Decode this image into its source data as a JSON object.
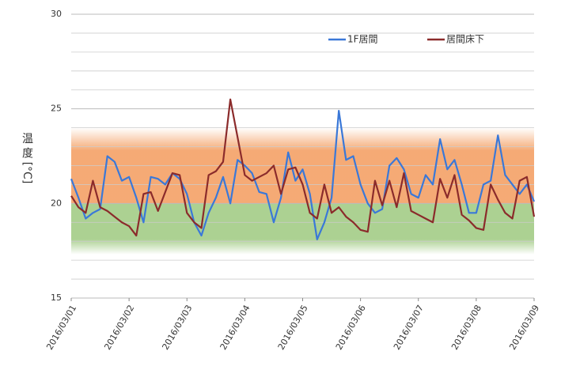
{
  "chart_data": {
    "type": "line",
    "ylabel": "温 度 [°C]",
    "x": [
      0,
      0.125,
      0.25,
      0.375,
      0.5,
      0.625,
      0.75,
      0.875,
      1,
      1.125,
      1.25,
      1.375,
      1.5,
      1.625,
      1.75,
      1.875,
      2,
      2.125,
      2.25,
      2.375,
      2.5,
      2.625,
      2.75,
      2.875,
      3,
      3.125,
      3.25,
      3.375,
      3.5,
      3.625,
      3.75,
      3.875,
      4,
      4.125,
      4.25,
      4.375,
      4.5,
      4.625,
      4.75,
      4.875,
      5,
      5.125,
      5.25,
      5.375,
      5.5,
      5.625,
      5.75,
      5.875,
      6,
      6.125,
      6.25,
      6.375,
      6.5,
      6.625,
      6.75,
      6.875,
      7,
      7.125,
      7.25,
      7.375,
      7.5,
      7.625,
      7.75,
      7.875,
      8
    ],
    "xlim": [
      0,
      8
    ],
    "xticks": [
      {
        "value": 0,
        "label": "2016/03/01"
      },
      {
        "value": 1,
        "label": "2016/03/02"
      },
      {
        "value": 2,
        "label": "2016/03/03"
      },
      {
        "value": 3,
        "label": "2016/03/04"
      },
      {
        "value": 4,
        "label": "2016/03/05"
      },
      {
        "value": 5,
        "label": "2016/03/06"
      },
      {
        "value": 6,
        "label": "2016/03/07"
      },
      {
        "value": 7,
        "label": "2016/03/08"
      },
      {
        "value": 8,
        "label": "2016/03/09"
      }
    ],
    "ylim": [
      15,
      30
    ],
    "yticks": [
      15,
      20,
      25,
      30
    ],
    "minor_yticks": [
      16,
      17,
      18,
      19,
      21,
      22,
      23,
      24,
      26,
      27,
      28,
      29
    ],
    "bands": [
      {
        "from": 20,
        "to": 24,
        "color": "#f4a166"
      },
      {
        "from": 17.3,
        "to": 20,
        "color": "#a3cc86"
      }
    ],
    "legend": "top-right",
    "series": [
      {
        "name": "1F居間",
        "color": "#3a78d8",
        "values": [
          21.3,
          20.3,
          19.2,
          19.5,
          19.7,
          22.5,
          22.2,
          21.2,
          21.4,
          20.3,
          19.0,
          21.4,
          21.3,
          21.0,
          21.6,
          21.3,
          20.5,
          19.0,
          18.3,
          19.5,
          20.3,
          21.4,
          20.0,
          22.3,
          22.0,
          21.6,
          20.6,
          20.5,
          19.0,
          20.3,
          22.7,
          21.2,
          21.8,
          20.5,
          18.1,
          19.0,
          20.3,
          24.9,
          22.3,
          22.5,
          21.0,
          20.0,
          19.5,
          19.7,
          22.0,
          22.4,
          21.8,
          20.5,
          20.3,
          21.5,
          21.0,
          23.4,
          21.8,
          22.3,
          21.0,
          19.5,
          19.5,
          21.0,
          21.2,
          23.6,
          21.5,
          21.0,
          20.5,
          21.0,
          20.1
        ]
      },
      {
        "name": "居間床下",
        "color": "#8b2b2b",
        "values": [
          20.4,
          19.8,
          19.5,
          21.2,
          19.8,
          19.6,
          19.3,
          19.0,
          18.8,
          18.3,
          20.5,
          20.6,
          19.6,
          20.6,
          21.6,
          21.5,
          19.5,
          19.0,
          18.7,
          21.5,
          21.7,
          22.2,
          25.5,
          23.5,
          21.5,
          21.2,
          21.4,
          21.6,
          22.0,
          20.5,
          21.8,
          21.9,
          21.0,
          19.5,
          19.2,
          21.0,
          19.5,
          19.8,
          19.3,
          19.0,
          18.6,
          18.5,
          21.2,
          19.9,
          21.2,
          19.8,
          21.6,
          19.6,
          19.4,
          19.2,
          19.0,
          21.3,
          20.3,
          21.5,
          19.4,
          19.1,
          18.7,
          18.6,
          21.0,
          20.2,
          19.5,
          19.2,
          21.2,
          21.4,
          19.3
        ]
      }
    ]
  }
}
